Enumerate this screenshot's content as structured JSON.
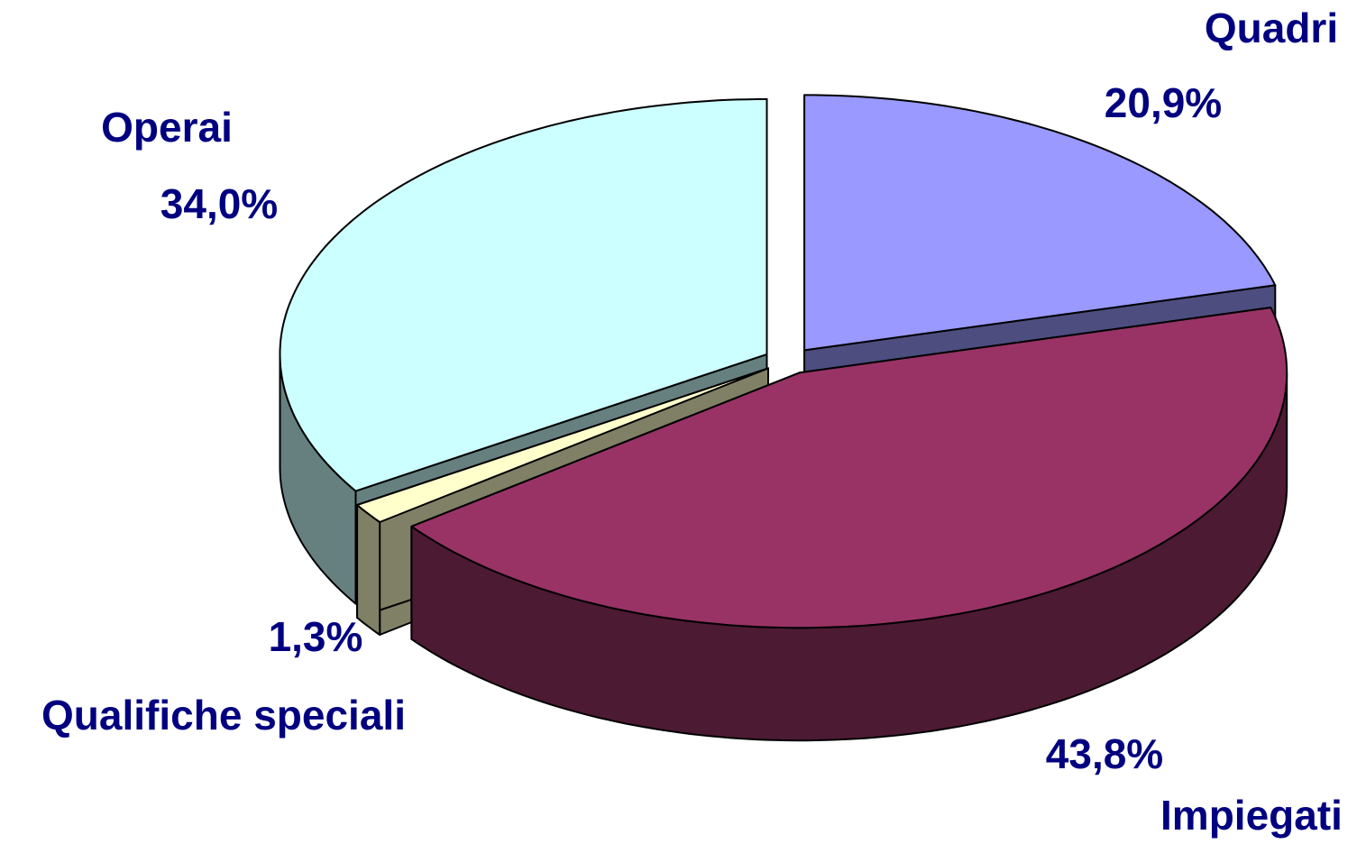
{
  "chart_data": {
    "type": "pie",
    "categories": [
      "Quadri",
      "Impiegati",
      "Qualifiche speciali",
      "Operai"
    ],
    "values": [
      20.9,
      43.8,
      1.3,
      34.0
    ],
    "value_labels": [
      "20,9%",
      "43,8%",
      "1,3%",
      "34,0%"
    ],
    "colors": [
      "#9999ff",
      "#993366",
      "#ffffcc",
      "#ccffff"
    ]
  }
}
